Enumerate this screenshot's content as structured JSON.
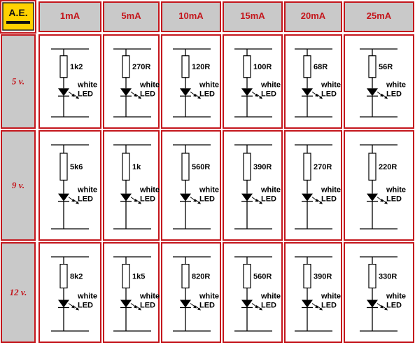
{
  "logo": {
    "text": "A.E."
  },
  "columns": [
    "1mA",
    "5mA",
    "10mA",
    "15mA",
    "20mA",
    "25mA"
  ],
  "rows": [
    {
      "label": "5 v.",
      "resistors": [
        "1k2",
        "270R",
        "120R",
        "100R",
        "68R",
        "56R"
      ]
    },
    {
      "label": "9 v.",
      "resistors": [
        "5k6",
        "1k",
        "560R",
        "390R",
        "270R",
        "220R"
      ]
    },
    {
      "label": "12 v.",
      "resistors": [
        "8k2",
        "1k5",
        "820R",
        "560R",
        "390R",
        "330R"
      ]
    }
  ],
  "led_label": {
    "line1": "white",
    "line2": "LED"
  },
  "colors": {
    "border": "#c4161c",
    "header_bg": "#c9c9c9",
    "text_accent": "#c4161c",
    "logo_bg": "#ffd200"
  }
}
